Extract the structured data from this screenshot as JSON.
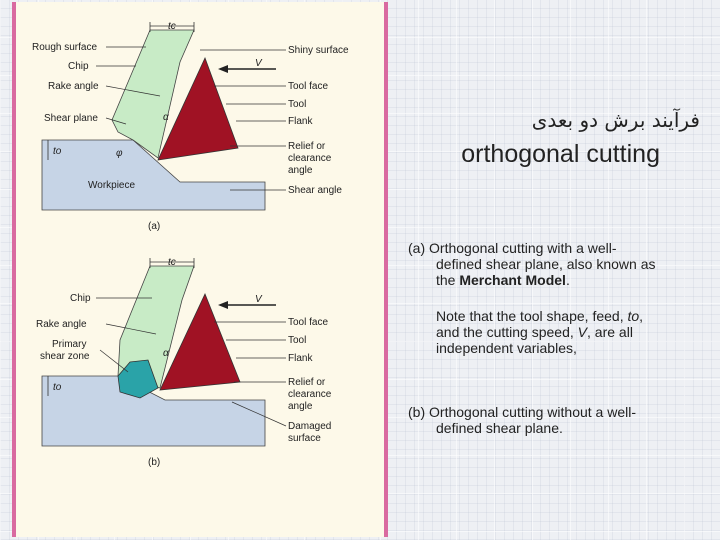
{
  "figure_a": {
    "top_dim": "tc",
    "labels_left": [
      "Rough surface",
      "Chip",
      "Rake angle",
      "Shear plane"
    ],
    "to_label": "to",
    "workpiece": "Workpiece",
    "labels_right": [
      "Shiny surface",
      "Tool face",
      "Tool",
      "Flank",
      "Relief or",
      "clearance",
      "angle",
      "Shear angle"
    ],
    "v_label": "V",
    "alpha": "α",
    "phi": "φ",
    "caption": "(a)"
  },
  "figure_b": {
    "top_dim": "tc",
    "labels_left": [
      "Chip",
      "Rake angle",
      "Primary",
      "shear zone"
    ],
    "to_label": "to",
    "labels_right": [
      "Tool face",
      "Tool",
      "Flank",
      "Relief or",
      "clearance",
      "angle",
      "Damaged",
      "surface"
    ],
    "v_label": "V",
    "alpha": "α",
    "caption": "(b)"
  },
  "title_fa": "فرآیند برش دو بعدی",
  "title_en": "orthogonal cutting",
  "desc_a_prefix": "(a)",
  "desc_a_line1": "Orthogonal cutting with a well-",
  "desc_a_line2": "defined shear plane, also known as",
  "desc_a_line3_pre": "the ",
  "desc_a_line3_bold": "Merchant Model",
  "desc_a_line3_post": ".",
  "note_line1_pre": "Note that the tool shape, feed, ",
  "note_line1_var": "to",
  "note_line1_post": ",",
  "note_line2_pre": "and the cutting speed, ",
  "note_line2_var": "V",
  "note_line2_post": ", are all",
  "note_line3": "independent variables,",
  "desc_b_prefix": "(b)",
  "desc_b_line1": "Orthogonal cutting without a well-",
  "desc_b_line2": "defined shear plane."
}
